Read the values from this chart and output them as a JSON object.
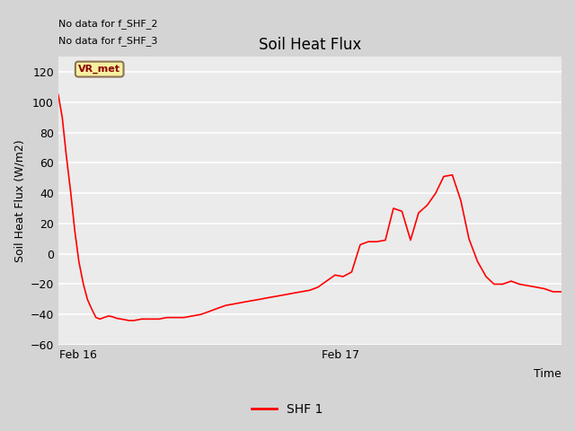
{
  "title": "Soil Heat Flux",
  "ylabel": "Soil Heat Flux (W/m2)",
  "xlabel": "Time",
  "ylim": [
    -60,
    130
  ],
  "yticks": [
    -60,
    -40,
    -20,
    0,
    20,
    40,
    60,
    80,
    100,
    120
  ],
  "xtick_labels": [
    "Feb 16",
    "Feb 17"
  ],
  "xtick_positions": [
    0.04,
    0.56
  ],
  "annotations": [
    "No data for f_SHF_2",
    "No data for f_SHF_3"
  ],
  "legend_label": "SHF 1",
  "legend_color": "#ff0000",
  "line_color": "#ff0000",
  "fig_bg_color": "#d4d4d4",
  "plot_bg_color": "#ebebeb",
  "vr_met_label": "VR_met",
  "vr_met_box_color": "#f5f0a0",
  "vr_met_border_color": "#8b7355",
  "title_fontsize": 12,
  "axis_label_fontsize": 9,
  "tick_fontsize": 9,
  "x_values": [
    0.0,
    0.008,
    0.016,
    0.025,
    0.033,
    0.041,
    0.05,
    0.058,
    0.066,
    0.075,
    0.083,
    0.091,
    0.1,
    0.108,
    0.116,
    0.125,
    0.133,
    0.141,
    0.15,
    0.158,
    0.166,
    0.175,
    0.183,
    0.191,
    0.2,
    0.216,
    0.233,
    0.25,
    0.266,
    0.283,
    0.3,
    0.316,
    0.333,
    0.35,
    0.366,
    0.383,
    0.4,
    0.416,
    0.433,
    0.45,
    0.466,
    0.483,
    0.5,
    0.516,
    0.533,
    0.55,
    0.566,
    0.583,
    0.6,
    0.616,
    0.633,
    0.65,
    0.666,
    0.683,
    0.7,
    0.716,
    0.733,
    0.75,
    0.766,
    0.783,
    0.8,
    0.816,
    0.833,
    0.85,
    0.866,
    0.883,
    0.9,
    0.916,
    0.933,
    0.95,
    0.966,
    0.983,
    1.0
  ],
  "y_values": [
    105,
    90,
    65,
    40,
    15,
    -5,
    -20,
    -30,
    -36,
    -42,
    -43,
    -42,
    -41,
    -41.5,
    -42.5,
    -43,
    -43.5,
    -44,
    -44,
    -43.5,
    -43,
    -43,
    -43,
    -43,
    -43,
    -42,
    -42,
    -42,
    -41,
    -40,
    -38,
    -36,
    -34,
    -33,
    -32,
    -31,
    -30,
    -29,
    -28,
    -27,
    -26,
    -25,
    -24,
    -22,
    -18,
    -14,
    -15,
    -12,
    6,
    8,
    8,
    9,
    30,
    28,
    9,
    27,
    32,
    40,
    51,
    52,
    35,
    10,
    -5,
    -15,
    -20,
    -20,
    -18,
    -20,
    -21,
    -22,
    -23,
    -25,
    -25
  ]
}
